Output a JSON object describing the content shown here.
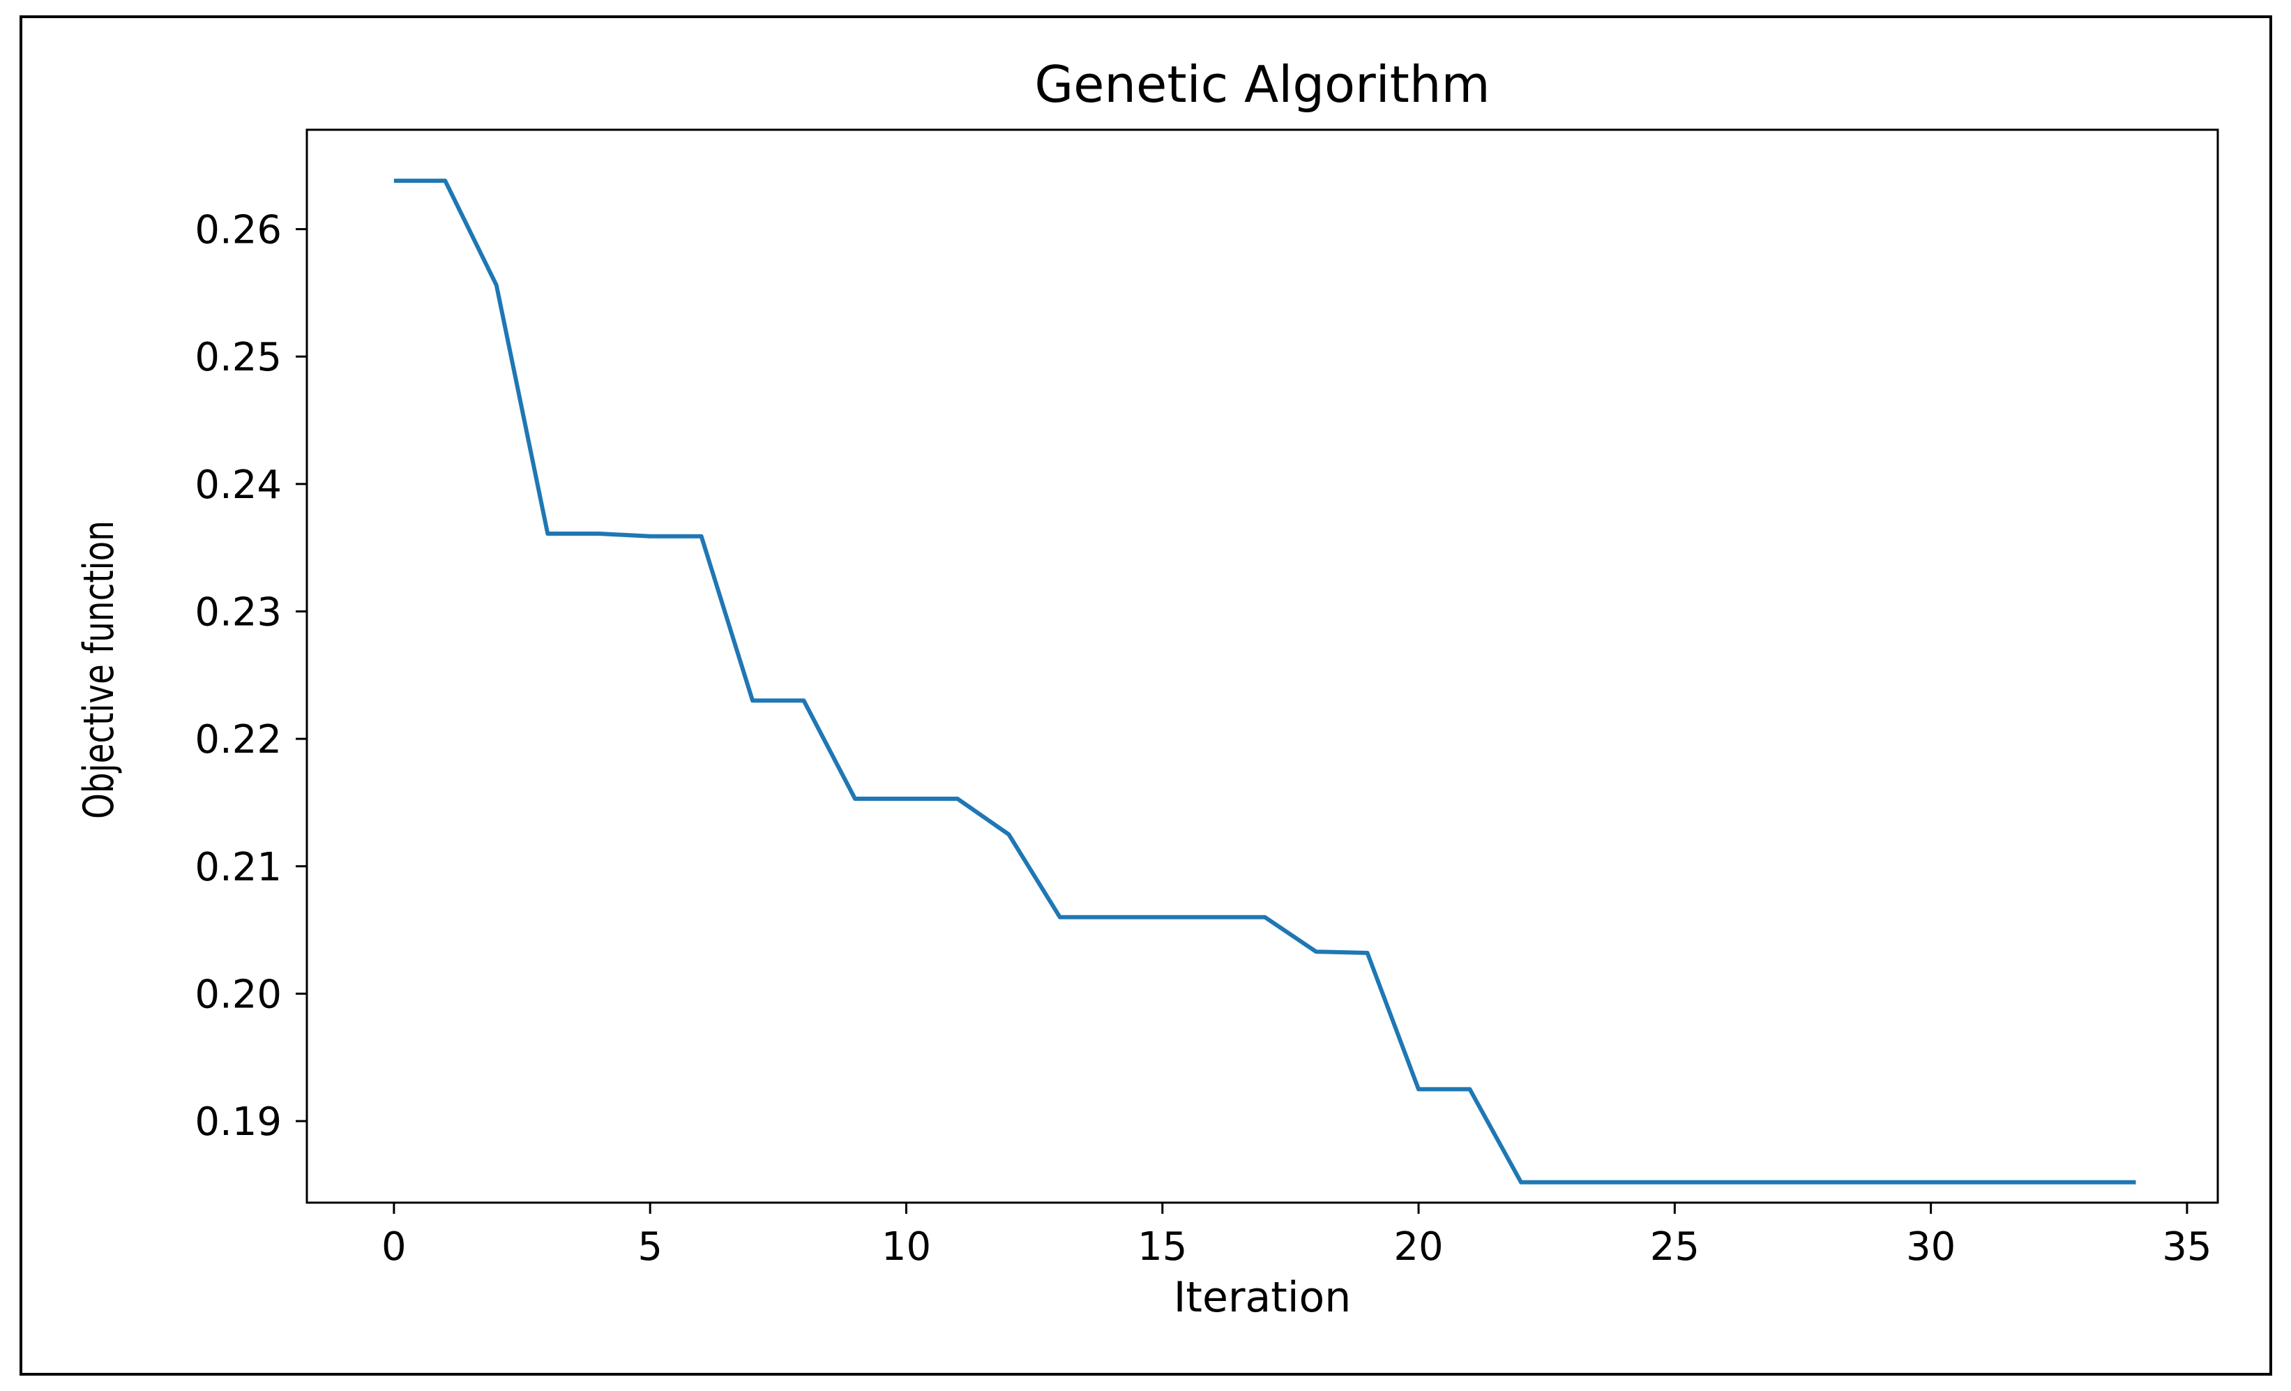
{
  "chart_data": {
    "type": "line",
    "title": "Genetic Algorithm",
    "xlabel": "Iteration",
    "ylabel": "Objective function",
    "xlim": [
      -1.7,
      35.6
    ],
    "ylim": [
      0.1836,
      0.2678
    ],
    "xticks": [
      0,
      5,
      10,
      15,
      20,
      25,
      30,
      35
    ],
    "yticks": [
      0.19,
      0.2,
      0.21,
      0.22,
      0.23,
      0.24,
      0.25,
      0.26
    ],
    "ytick_labels": [
      "0.19",
      "0.20",
      "0.21",
      "0.22",
      "0.23",
      "0.24",
      "0.25",
      "0.26"
    ],
    "grid": false,
    "legend": "none",
    "series": [
      {
        "color": "#1f77b4",
        "x": [
          0,
          1,
          2,
          3,
          4,
          5,
          6,
          7,
          8,
          9,
          10,
          11,
          12,
          13,
          14,
          15,
          16,
          17,
          18,
          19,
          20,
          21,
          22,
          23,
          24,
          25,
          26,
          27,
          28,
          29,
          30,
          31,
          32,
          33,
          34
        ],
        "y": [
          0.2638,
          0.2638,
          0.2556,
          0.2361,
          0.2361,
          0.2359,
          0.2359,
          0.223,
          0.223,
          0.2153,
          0.2153,
          0.2153,
          0.2125,
          0.206,
          0.206,
          0.206,
          0.206,
          0.206,
          0.2033,
          0.2032,
          0.1925,
          0.1925,
          0.1852,
          0.1852,
          0.1852,
          0.1852,
          0.1852,
          0.1852,
          0.1852,
          0.1852,
          0.1852,
          0.1852,
          0.1852,
          0.1852,
          0.1852
        ]
      }
    ]
  }
}
